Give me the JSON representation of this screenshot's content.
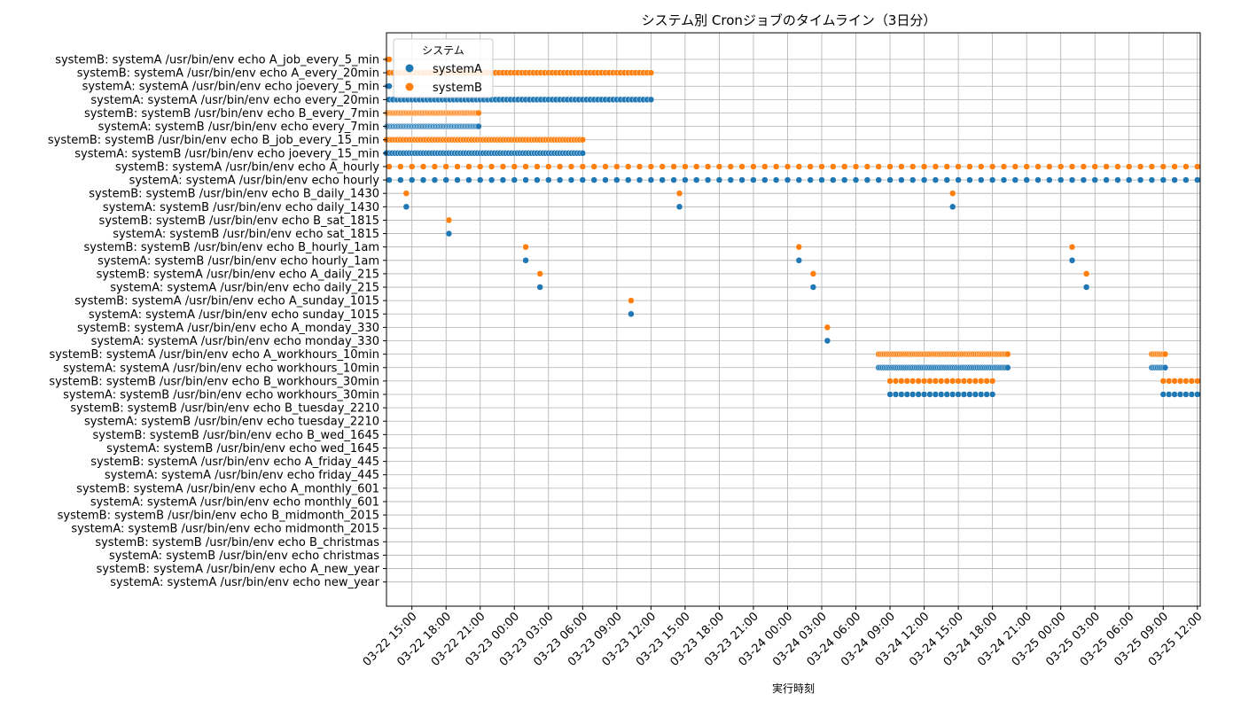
{
  "chart_data": {
    "type": "scatter",
    "title": "システム別 Cronジョブのタイムライン（3日分）",
    "xlabel": "実行時刻",
    "ylabel": "",
    "grid": true,
    "legend": {
      "title": "システム",
      "placement": "top-left",
      "entries": [
        "systemA",
        "systemB"
      ]
    },
    "colors": {
      "systemA": "#1f77b4",
      "systemB": "#ff7f0e"
    },
    "xlim": [
      "03-22 12:46",
      "03-25 12:15"
    ],
    "x_ticks": [
      "03-22 15:00",
      "03-22 18:00",
      "03-22 21:00",
      "03-23 00:00",
      "03-23 03:00",
      "03-23 06:00",
      "03-23 09:00",
      "03-23 12:00",
      "03-23 15:00",
      "03-23 18:00",
      "03-23 21:00",
      "03-24 00:00",
      "03-24 03:00",
      "03-24 06:00",
      "03-24 09:00",
      "03-24 12:00",
      "03-24 15:00",
      "03-24 18:00",
      "03-24 21:00",
      "03-25 00:00",
      "03-25 03:00",
      "03-25 06:00",
      "03-25 09:00",
      "03-25 12:00"
    ],
    "categories": [
      "systemB: systemA /usr/bin/env echo A_job_every_5_min",
      "systemB: systemA /usr/bin/env echo A_every_20min",
      "systemA: systemA /usr/bin/env echo joevery_5_min",
      "systemA: systemA /usr/bin/env echo every_20min",
      "systemB: systemB /usr/bin/env echo B_every_7min",
      "systemA: systemB /usr/bin/env echo every_7min",
      "systemB: systemB /usr/bin/env echo B_job_every_15_min",
      "systemA: systemB /usr/bin/env echo joevery_15_min",
      "systemB: systemA /usr/bin/env echo A_hourly",
      "systemA: systemA /usr/bin/env echo hourly",
      "systemB: systemB /usr/bin/env echo B_daily_1430",
      "systemA: systemB /usr/bin/env echo daily_1430",
      "systemB: systemB /usr/bin/env echo B_sat_1815",
      "systemA: systemB /usr/bin/env echo sat_1815",
      "systemB: systemB /usr/bin/env echo B_hourly_1am",
      "systemA: systemB /usr/bin/env echo hourly_1am",
      "systemB: systemA /usr/bin/env echo A_daily_215",
      "systemA: systemA /usr/bin/env echo daily_215",
      "systemB: systemA /usr/bin/env echo A_sunday_1015",
      "systemA: systemA /usr/bin/env echo sunday_1015",
      "systemB: systemA /usr/bin/env echo A_monday_330",
      "systemA: systemA /usr/bin/env echo monday_330",
      "systemB: systemA /usr/bin/env echo A_workhours_10min",
      "systemA: systemA /usr/bin/env echo workhours_10min",
      "systemB: systemB /usr/bin/env echo B_workhours_30min",
      "systemA: systemB /usr/bin/env echo workhours_30min",
      "systemB: systemB /usr/bin/env echo B_tuesday_2210",
      "systemA: systemB /usr/bin/env echo tuesday_2210",
      "systemB: systemB /usr/bin/env echo B_wed_1645",
      "systemA: systemB /usr/bin/env echo wed_1645",
      "systemB: systemA /usr/bin/env echo A_friday_445",
      "systemA: systemA /usr/bin/env echo friday_445",
      "systemB: systemA /usr/bin/env echo A_monthly_601",
      "systemA: systemA /usr/bin/env echo monthly_601",
      "systemB: systemB /usr/bin/env echo B_midmonth_2015",
      "systemA: systemB /usr/bin/env echo midmonth_2015",
      "systemB: systemB /usr/bin/env echo B_christmas",
      "systemA: systemB /usr/bin/env echo christmas",
      "systemB: systemA /usr/bin/env echo A_new_year",
      "systemA: systemA /usr/bin/env echo new_year"
    ],
    "series": [
      {
        "name": "systemB",
        "category": 0,
        "start": "03-22 12:50",
        "end": "03-22 13:00",
        "every_minutes": 5
      },
      {
        "name": "systemB",
        "category": 1,
        "start": "03-22 13:00",
        "end": "03-23 12:00",
        "every_minutes": 20
      },
      {
        "name": "systemA",
        "category": 2,
        "start": "03-22 12:50",
        "end": "03-22 13:00",
        "every_minutes": 5
      },
      {
        "name": "systemA",
        "category": 3,
        "start": "03-22 13:00",
        "end": "03-23 12:00",
        "every_minutes": 20
      },
      {
        "name": "systemB",
        "category": 4,
        "start": "03-22 12:49",
        "end": "03-22 20:54",
        "every_minutes": 7
      },
      {
        "name": "systemA",
        "category": 5,
        "start": "03-22 12:49",
        "end": "03-22 20:54",
        "every_minutes": 7
      },
      {
        "name": "systemB",
        "category": 6,
        "start": "03-22 12:45",
        "end": "03-23 06:00",
        "every_minutes": 15
      },
      {
        "name": "systemA",
        "category": 7,
        "start": "03-22 12:45",
        "end": "03-23 06:00",
        "every_minutes": 15
      },
      {
        "name": "systemB",
        "category": 8,
        "start": "03-22 13:00",
        "end": "03-25 12:00",
        "every_minutes": 60
      },
      {
        "name": "systemA",
        "category": 9,
        "start": "03-22 13:00",
        "end": "03-25 12:00",
        "every_minutes": 60
      },
      {
        "name": "systemB",
        "category": 10,
        "times": [
          "03-22 14:30",
          "03-23 14:30",
          "03-24 14:30"
        ]
      },
      {
        "name": "systemA",
        "category": 11,
        "times": [
          "03-22 14:30",
          "03-23 14:30",
          "03-24 14:30"
        ]
      },
      {
        "name": "systemB",
        "category": 12,
        "times": [
          "03-22 18:15"
        ]
      },
      {
        "name": "systemA",
        "category": 13,
        "times": [
          "03-22 18:15"
        ]
      },
      {
        "name": "systemB",
        "category": 14,
        "times": [
          "03-23 01:00",
          "03-24 01:00",
          "03-25 01:00"
        ]
      },
      {
        "name": "systemA",
        "category": 15,
        "times": [
          "03-23 01:00",
          "03-24 01:00",
          "03-25 01:00"
        ]
      },
      {
        "name": "systemB",
        "category": 16,
        "times": [
          "03-23 02:15",
          "03-24 02:15",
          "03-25 02:15"
        ]
      },
      {
        "name": "systemA",
        "category": 17,
        "times": [
          "03-23 02:15",
          "03-24 02:15",
          "03-25 02:15"
        ]
      },
      {
        "name": "systemB",
        "category": 18,
        "times": [
          "03-23 10:15"
        ]
      },
      {
        "name": "systemA",
        "category": 19,
        "times": [
          "03-23 10:15"
        ]
      },
      {
        "name": "systemB",
        "category": 20,
        "times": [
          "03-24 03:30"
        ]
      },
      {
        "name": "systemA",
        "category": 21,
        "times": [
          "03-24 03:30"
        ]
      },
      {
        "name": "systemB",
        "category": 22,
        "start": "03-24 08:00",
        "end": "03-24 19:20",
        "every_minutes": 10
      },
      {
        "name": "systemB",
        "category": 22,
        "start": "03-25 08:00",
        "end": "03-25 09:10",
        "every_minutes": 10
      },
      {
        "name": "systemA",
        "category": 23,
        "start": "03-24 08:00",
        "end": "03-24 19:20",
        "every_minutes": 10
      },
      {
        "name": "systemA",
        "category": 23,
        "start": "03-25 08:00",
        "end": "03-25 09:10",
        "every_minutes": 10
      },
      {
        "name": "systemB",
        "category": 24,
        "start": "03-24 09:00",
        "end": "03-24 18:00",
        "every_minutes": 30
      },
      {
        "name": "systemB",
        "category": 24,
        "start": "03-25 09:00",
        "end": "03-25 12:00",
        "every_minutes": 30
      },
      {
        "name": "systemA",
        "category": 25,
        "start": "03-24 09:00",
        "end": "03-24 18:00",
        "every_minutes": 30
      },
      {
        "name": "systemA",
        "category": 25,
        "start": "03-25 09:00",
        "end": "03-25 12:00",
        "every_minutes": 30
      }
    ]
  }
}
